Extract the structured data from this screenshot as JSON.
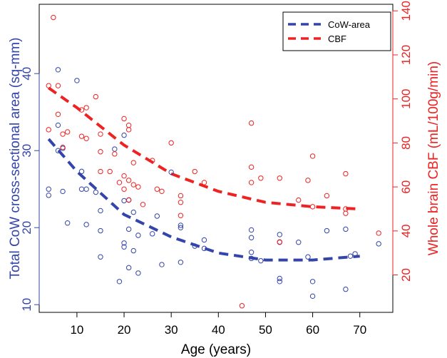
{
  "chart_data": {
    "type": "scatter",
    "title": "",
    "xlabel": "Age (years)",
    "ylabel_left": "Total CoW cross-sectional area (sq-mm)",
    "ylabel_right": "Whole brain CBF (mL/100g/min)",
    "xlim": [
      2,
      77
    ],
    "ylim_left": [
      9,
      49
    ],
    "ylim_right": [
      3,
      143
    ],
    "x_ticks": [
      10,
      20,
      30,
      40,
      50,
      60,
      70
    ],
    "y_ticks_left": [
      10,
      20,
      30,
      40
    ],
    "y_ticks_right": [
      20,
      40,
      60,
      80,
      100,
      120,
      140
    ],
    "grid": false,
    "legend_position": "top-right",
    "series": [
      {
        "name": "CoW-area",
        "axis": "left",
        "color": "#3344aa",
        "points": [
          [
            4,
            25.0
          ],
          [
            4,
            24.2
          ],
          [
            6,
            33.3
          ],
          [
            6,
            40.5
          ],
          [
            6,
            30.0
          ],
          [
            7,
            24.7
          ],
          [
            7,
            30.3
          ],
          [
            8,
            20.6
          ],
          [
            10,
            39.1
          ],
          [
            11,
            25.0
          ],
          [
            11,
            27.3
          ],
          [
            12,
            20.4
          ],
          [
            12,
            25.0
          ],
          [
            14,
            24.6
          ],
          [
            15,
            16.2
          ],
          [
            15,
            19.6
          ],
          [
            15,
            22.2
          ],
          [
            18,
            30.2
          ],
          [
            19,
            13.0
          ],
          [
            20,
            32.0
          ],
          [
            20,
            23.5
          ],
          [
            20,
            18.0
          ],
          [
            20,
            17.5
          ],
          [
            21,
            23.6
          ],
          [
            21,
            14.8
          ],
          [
            21,
            19.8
          ],
          [
            22,
            22.0
          ],
          [
            22,
            17.0
          ],
          [
            23,
            14.1
          ],
          [
            23,
            19.0
          ],
          [
            26,
            19.2
          ],
          [
            27,
            21.5
          ],
          [
            28,
            15.2
          ],
          [
            30,
            27.2
          ],
          [
            32,
            20.3
          ],
          [
            32,
            20.0
          ],
          [
            32,
            15.5
          ],
          [
            35,
            17.6
          ],
          [
            37,
            18.4
          ],
          [
            37,
            17.3
          ],
          [
            47,
            19.7
          ],
          [
            47,
            18.7
          ],
          [
            47,
            16.8
          ],
          [
            47,
            16.0
          ],
          [
            49,
            15.7
          ],
          [
            53,
            19.1
          ],
          [
            53,
            18.1
          ],
          [
            53,
            13.4
          ],
          [
            53,
            13.0
          ],
          [
            57,
            18.1
          ],
          [
            59,
            16.2
          ],
          [
            60,
            13.0
          ],
          [
            60,
            11.1
          ],
          [
            63,
            19.6
          ],
          [
            67,
            19.8
          ],
          [
            67,
            12.0
          ],
          [
            68,
            16.3
          ],
          [
            69,
            16.6
          ],
          [
            74,
            17.9
          ]
        ],
        "fit_line": [
          [
            4,
            31.5
          ],
          [
            10,
            27.3
          ],
          [
            20,
            21.7
          ],
          [
            30,
            18.8
          ],
          [
            40,
            16.7
          ],
          [
            50,
            15.8
          ],
          [
            60,
            15.8
          ],
          [
            70,
            16.3
          ]
        ]
      },
      {
        "name": "CBF",
        "axis": "right",
        "color": "#ee2222",
        "points": [
          [
            4,
            106
          ],
          [
            4,
            86
          ],
          [
            5,
            137
          ],
          [
            6,
            106
          ],
          [
            6,
            93
          ],
          [
            7,
            84
          ],
          [
            7,
            78
          ],
          [
            8,
            85
          ],
          [
            11,
            95
          ],
          [
            11,
            83
          ],
          [
            12,
            82
          ],
          [
            12,
            96
          ],
          [
            14,
            101
          ],
          [
            15,
            84
          ],
          [
            15,
            76
          ],
          [
            15,
            67
          ],
          [
            17,
            67
          ],
          [
            18,
            75
          ],
          [
            19,
            62
          ],
          [
            20,
            91
          ],
          [
            20,
            65
          ],
          [
            20,
            59
          ],
          [
            21,
            88
          ],
          [
            21,
            86
          ],
          [
            21,
            63
          ],
          [
            21,
            54
          ],
          [
            22,
            71
          ],
          [
            22,
            61
          ],
          [
            23,
            60
          ],
          [
            24,
            52
          ],
          [
            26,
            72
          ],
          [
            27,
            59
          ],
          [
            28,
            58
          ],
          [
            30,
            80
          ],
          [
            32,
            56
          ],
          [
            32,
            53
          ],
          [
            32,
            47
          ],
          [
            35,
            67
          ],
          [
            37,
            62
          ],
          [
            45,
            6
          ],
          [
            47,
            89
          ],
          [
            47,
            69
          ],
          [
            47,
            62
          ],
          [
            49,
            64
          ],
          [
            53,
            64
          ],
          [
            53,
            35
          ],
          [
            57,
            54
          ],
          [
            59,
            63
          ],
          [
            60,
            74
          ],
          [
            60,
            51
          ],
          [
            63,
            56
          ],
          [
            67,
            66
          ],
          [
            67,
            50
          ],
          [
            67,
            48
          ],
          [
            74,
            39
          ]
        ],
        "fit_line": [
          [
            4,
            105
          ],
          [
            10,
            96
          ],
          [
            20,
            79
          ],
          [
            30,
            66
          ],
          [
            40,
            58
          ],
          [
            50,
            53
          ],
          [
            60,
            51
          ],
          [
            70,
            50
          ]
        ]
      }
    ]
  }
}
